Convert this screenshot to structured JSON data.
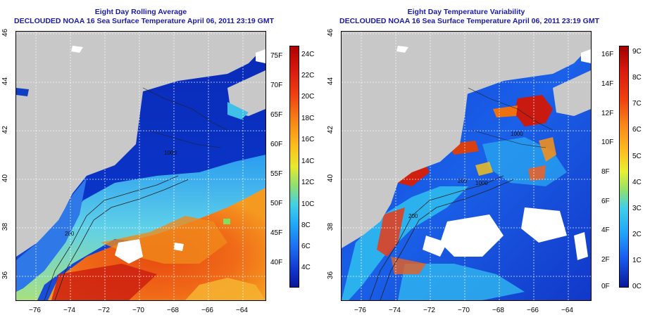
{
  "panels": [
    {
      "title_line1": "Eight Day Rolling Average",
      "title_line2": "DECLOUDED NOAA 16 Sea Surface Temperature April 06, 2011 23:19 GMT",
      "colorbar": {
        "f_labels": [
          "75F",
          "70F",
          "65F",
          "60F",
          "55F",
          "50F",
          "45F",
          "40F"
        ],
        "c_labels": [
          "24C",
          "22C",
          "20C",
          "18C",
          "16C",
          "14C",
          "12C",
          "10C",
          "8C",
          "6C",
          "4C"
        ]
      },
      "contour_labels": [
        "200",
        "1000"
      ]
    },
    {
      "title_line1": "Eight Day Temperature Variability",
      "title_line2": "DECLOUDED NOAA 16 Sea Surface Temperature April 06, 2011 23:19 GMT",
      "colorbar": {
        "f_labels": [
          "16F",
          "14F",
          "12F",
          "10F",
          "8F",
          "6F",
          "4F",
          "2F",
          "0F"
        ],
        "c_labels": [
          "9C",
          "8C",
          "7C",
          "6C",
          "5C",
          "4C",
          "3C",
          "2C",
          "1C",
          "0C"
        ]
      },
      "contour_labels": [
        "200",
        "1000",
        "200",
        "1000"
      ]
    }
  ],
  "axes": {
    "x_ticks": [
      "−76",
      "−74",
      "−72",
      "−70",
      "−68",
      "−66",
      "−64"
    ],
    "y_ticks": [
      "46",
      "44",
      "42",
      "40",
      "38",
      "36"
    ]
  },
  "colors": {
    "land": "#c8c8c8",
    "title": "#1a1aa6"
  }
}
